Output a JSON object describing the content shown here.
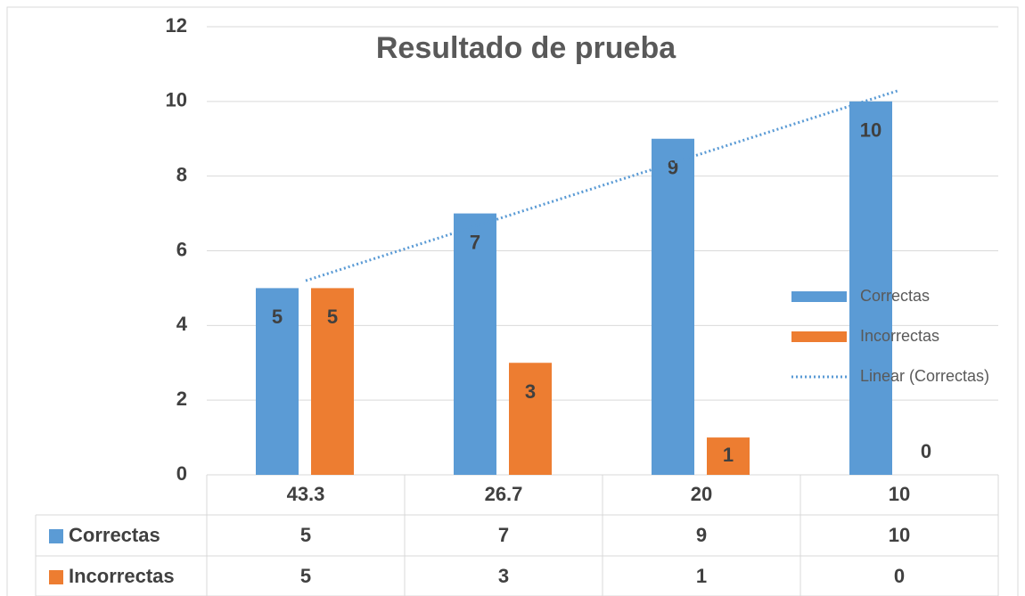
{
  "chart_data": {
    "type": "bar",
    "title": "Resultado de prueba",
    "categories": [
      "43.3",
      "26.7",
      "20",
      "10"
    ],
    "series": [
      {
        "name": "Correctas",
        "color": "#5b9bd5",
        "values": [
          5,
          7,
          9,
          10
        ]
      },
      {
        "name": "Incorrectas",
        "color": "#ed7d31",
        "values": [
          5,
          3,
          1,
          0
        ]
      }
    ],
    "trendline": {
      "name": "Linear (Correctas)",
      "series": 0,
      "kind": "linear",
      "color": "#5b9bd5"
    },
    "ylim": [
      0,
      12
    ],
    "yticks": [
      0,
      2,
      4,
      6,
      8,
      10,
      12
    ],
    "grid": true,
    "legend": "right",
    "data_table": true
  }
}
